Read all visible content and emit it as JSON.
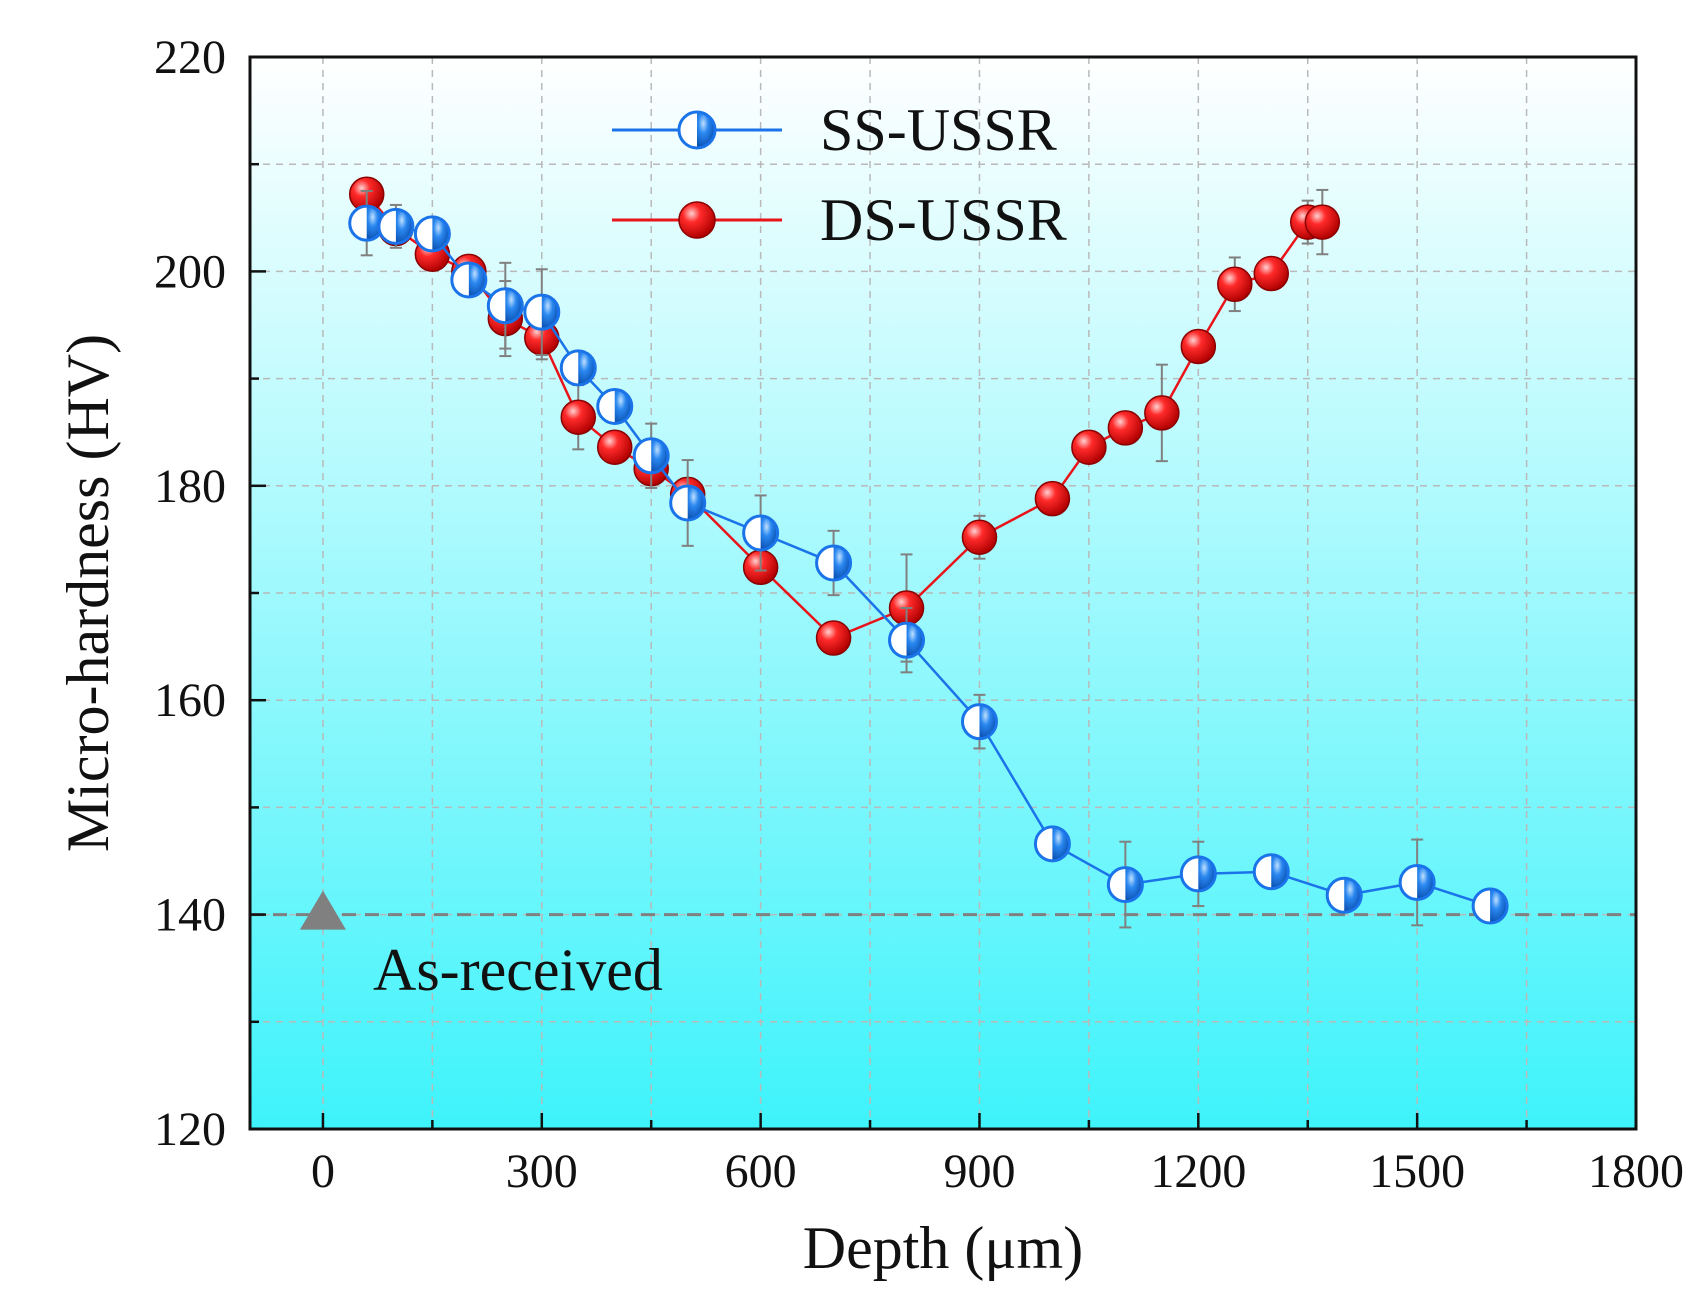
{
  "chart_data": {
    "type": "line",
    "xlabel": "Depth (μm)",
    "ylabel": "Micro-hardness (HV)",
    "xlim": [
      -100,
      1800
    ],
    "ylim": [
      120,
      220
    ],
    "xticks": [
      0,
      300,
      600,
      900,
      1200,
      1500,
      1800
    ],
    "yticks": [
      120,
      140,
      160,
      180,
      200,
      220
    ],
    "grid": true,
    "legend_position": "top-center",
    "series": [
      {
        "name": "SS-USSR",
        "color": "#1a73e8",
        "marker": "half-filled-circle",
        "x": [
          60,
          100,
          150,
          200,
          250,
          300,
          350,
          400,
          450,
          500,
          600,
          700,
          800,
          900,
          1000,
          1100,
          1200,
          1300,
          1400,
          1500,
          1600
        ],
        "y": [
          204.5,
          204.2,
          203.5,
          199.2,
          196.8,
          196.2,
          191.0,
          187.4,
          182.8,
          178.4,
          175.6,
          172.8,
          165.6,
          158.0,
          146.6,
          142.8,
          143.8,
          144.0,
          141.8,
          143.0,
          140.8
        ],
        "err": [
          3.0,
          2.0,
          1.5,
          1.0,
          4.0,
          4.0,
          1.5,
          1.5,
          3.0,
          4.0,
          3.5,
          3.0,
          3.0,
          2.5,
          0.5,
          4.0,
          3.0,
          1.0,
          1.0,
          4.0,
          1.5
        ]
      },
      {
        "name": "DS-USSR",
        "color": "#e8141a",
        "marker": "filled-sphere",
        "x": [
          60,
          100,
          150,
          200,
          250,
          300,
          350,
          400,
          450,
          500,
          600,
          700,
          800,
          900,
          1000,
          1050,
          1100,
          1150,
          1200,
          1250,
          1300,
          1350,
          1370
        ],
        "y": [
          207.2,
          204.0,
          201.6,
          200.0,
          195.6,
          193.8,
          186.4,
          183.6,
          181.6,
          179.2,
          172.4,
          165.8,
          168.6,
          175.2,
          178.8,
          183.6,
          185.4,
          186.8,
          193.0,
          198.8,
          199.8,
          204.6,
          204.6
        ],
        "err": [
          0.5,
          1.5,
          1.5,
          1.0,
          3.5,
          2.0,
          3.0,
          1.0,
          1.0,
          1.5,
          1.0,
          1.0,
          5.0,
          2.0,
          1.0,
          1.0,
          1.0,
          4.5,
          1.0,
          2.5,
          1.0,
          2.0,
          3.0
        ]
      }
    ],
    "reference": {
      "label": "As-received",
      "x": 0,
      "y": 140,
      "marker_color": "#808080",
      "line_color": "#808080"
    }
  }
}
